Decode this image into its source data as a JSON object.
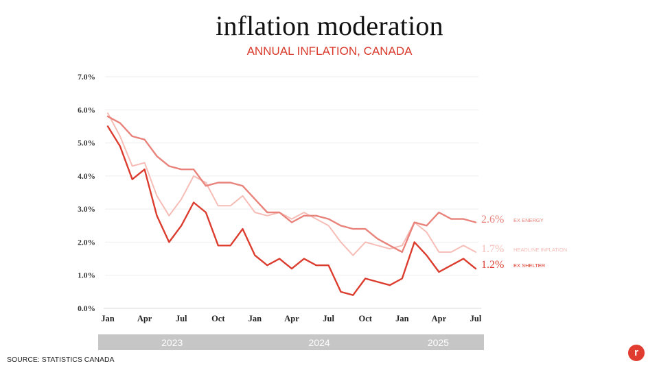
{
  "header": {
    "title": "inflation moderation",
    "subtitle": "ANNUAL INFLATION, CANADA"
  },
  "footer": {
    "source": "SOURCE: STATISTICS CANADA",
    "logo_glyph": "r"
  },
  "colors": {
    "ex_energy": "#e8827a",
    "headline": "#f6bcb6",
    "ex_shelter": "#dc3c2e",
    "year_band": "#c6c6c6",
    "gridline": "#eeeeee",
    "accent": "#d93a2b"
  },
  "chart_data": {
    "type": "line",
    "ylim": [
      0,
      7
    ],
    "yticks": [
      "0.0%",
      "1.0%",
      "2.0%",
      "3.0%",
      "4.0%",
      "5.0%",
      "6.0%",
      "7.0%"
    ],
    "x": [
      "2023-01",
      "2023-02",
      "2023-03",
      "2023-04",
      "2023-05",
      "2023-06",
      "2023-07",
      "2023-08",
      "2023-09",
      "2023-10",
      "2023-11",
      "2023-12",
      "2024-01",
      "2024-02",
      "2024-03",
      "2024-04",
      "2024-05",
      "2024-06",
      "2024-07",
      "2024-08",
      "2024-09",
      "2024-10",
      "2024-11",
      "2024-12",
      "2025-01",
      "2025-02",
      "2025-03",
      "2025-04",
      "2025-05",
      "2025-06",
      "2025-07"
    ],
    "xtick_labels": [
      "Jan",
      "",
      "",
      "Apr",
      "",
      "",
      "Jul",
      "",
      "",
      "Oct",
      "",
      "",
      "Jan",
      "",
      "",
      "Apr",
      "",
      "",
      "Jul",
      "",
      "",
      "Oct",
      "",
      "",
      "Jan",
      "",
      "",
      "Apr",
      "",
      "",
      "Jul"
    ],
    "year_bands": [
      {
        "label": "2023",
        "from": "2023-01",
        "to": "2023-12"
      },
      {
        "label": "2024",
        "from": "2024-01",
        "to": "2024-12"
      },
      {
        "label": "2025",
        "from": "2025-01",
        "to": "2025-07"
      }
    ],
    "grid": true,
    "series": [
      {
        "key": "headline",
        "name": "HEADLINE INFLATION",
        "end_label": "1.7%",
        "values": [
          5.9,
          5.2,
          4.3,
          4.4,
          3.4,
          2.8,
          3.3,
          4.0,
          3.8,
          3.1,
          3.1,
          3.4,
          2.9,
          2.8,
          2.9,
          2.7,
          2.9,
          2.7,
          2.5,
          2.0,
          1.6,
          2.0,
          1.9,
          1.8,
          1.9,
          2.6,
          2.3,
          1.7,
          1.7,
          1.9,
          1.7
        ]
      },
      {
        "key": "ex_energy",
        "name": "EX ENERGY",
        "end_label": "2.6%",
        "values": [
          5.8,
          5.6,
          5.2,
          5.1,
          4.6,
          4.3,
          4.2,
          4.2,
          3.7,
          3.8,
          3.8,
          3.7,
          3.3,
          2.9,
          2.9,
          2.6,
          2.8,
          2.8,
          2.7,
          2.5,
          2.4,
          2.4,
          2.1,
          1.9,
          1.7,
          2.6,
          2.5,
          2.9,
          2.7,
          2.7,
          2.6
        ]
      },
      {
        "key": "ex_shelter",
        "name": "EX SHELTER",
        "end_label": "1.2%",
        "values": [
          5.5,
          4.9,
          3.9,
          4.2,
          2.8,
          2.0,
          2.5,
          3.2,
          2.9,
          1.9,
          1.9,
          2.4,
          1.6,
          1.3,
          1.5,
          1.2,
          1.5,
          1.3,
          1.3,
          0.5,
          0.4,
          0.9,
          0.8,
          0.7,
          0.9,
          2.0,
          1.6,
          1.1,
          1.3,
          1.5,
          1.2
        ]
      }
    ]
  }
}
